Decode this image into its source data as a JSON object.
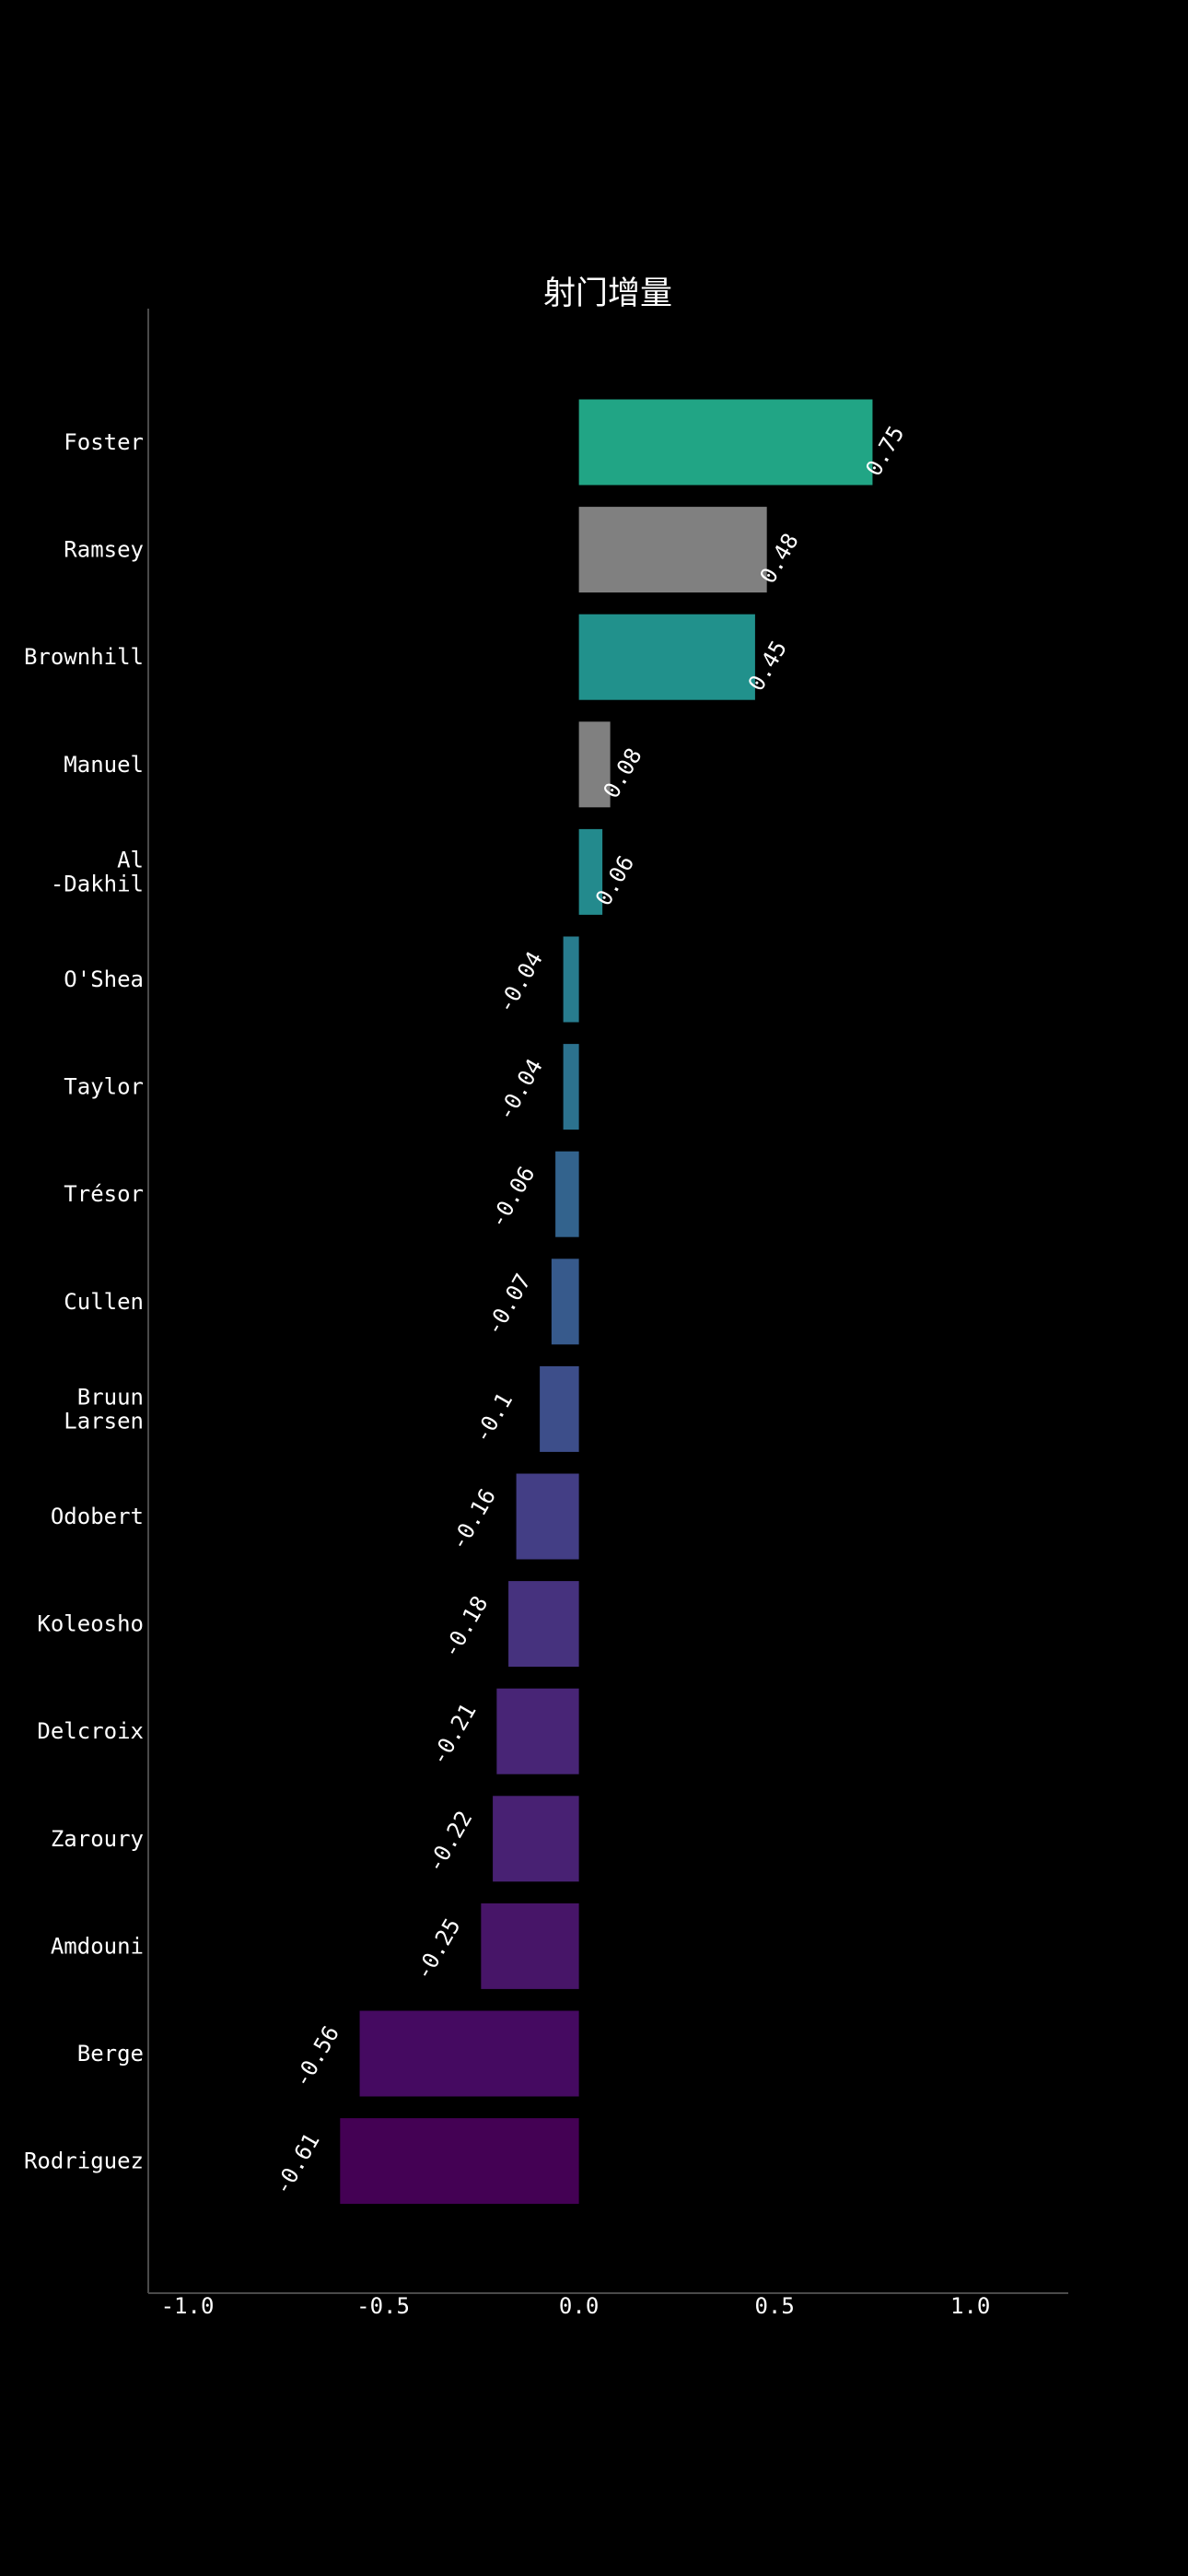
{
  "chart_data": {
    "type": "bar",
    "orientation": "horizontal",
    "title": "射门增量",
    "xlabel": "",
    "ylabel": "",
    "xlim": [
      -1.1,
      1.25
    ],
    "xticks": [
      -1.0,
      -0.5,
      0.0,
      0.5,
      1.0
    ],
    "xtick_labels": [
      "-1.0",
      "-0.5",
      "0.0",
      "0.5",
      "1.0"
    ],
    "grid": false,
    "legend": "none",
    "categories": [
      [
        "Foster"
      ],
      [
        "Ramsey"
      ],
      [
        "Brownhill"
      ],
      [
        "Manuel"
      ],
      [
        "Al",
        "-Dakhil"
      ],
      [
        "O'Shea"
      ],
      [
        "Taylor"
      ],
      [
        "Trésor"
      ],
      [
        "Cullen"
      ],
      [
        "Bruun",
        "Larsen"
      ],
      [
        "Odobert"
      ],
      [
        "Koleosho"
      ],
      [
        "Delcroix"
      ],
      [
        "Zaroury"
      ],
      [
        "Amdouni"
      ],
      [
        "Berge"
      ],
      [
        "Rodriguez"
      ]
    ],
    "values": [
      0.75,
      0.48,
      0.45,
      0.08,
      0.06,
      -0.04,
      -0.04,
      -0.06,
      -0.07,
      -0.1,
      -0.16,
      -0.18,
      -0.21,
      -0.22,
      -0.25,
      -0.56,
      -0.61
    ],
    "value_labels": [
      "0.75",
      "0.48",
      "0.45",
      "0.08",
      "0.06",
      "-0.04",
      "-0.04",
      "-0.06",
      "-0.07",
      "-0.1",
      "-0.16",
      "-0.18",
      "-0.21",
      "-0.22",
      "-0.25",
      "-0.56",
      "-0.61"
    ],
    "colors": [
      "#21a585",
      "#808080",
      "#21918c",
      "#808080",
      "#238a8d",
      "#287c8e",
      "#2c728e",
      "#33638d",
      "#375a8c",
      "#3d4e8a",
      "#433e85",
      "#46327e",
      "#482576",
      "#482173",
      "#471568",
      "#450a61",
      "#440154"
    ]
  }
}
